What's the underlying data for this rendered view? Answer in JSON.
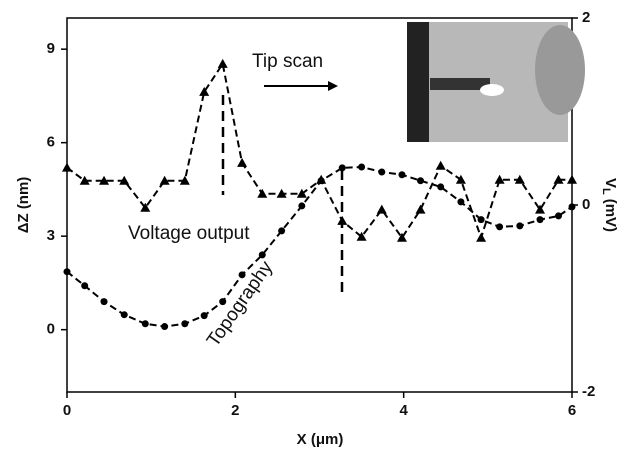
{
  "chart_data": {
    "type": "line",
    "xlabel": "X (μm)",
    "ylabel": "ΔZ (nm)",
    "y2label": {
      "main": "V",
      "sub": "L",
      "unit": "(mV)"
    },
    "annotations": {
      "tip_scan": "Tip scan",
      "voltage": "Voltage output",
      "topography": "Topography"
    },
    "x": [
      0,
      0.21,
      0.44,
      0.68,
      0.93,
      1.16,
      1.4,
      1.63,
      1.85,
      2.08,
      2.32,
      2.55,
      2.79,
      3.02,
      3.27,
      3.5,
      3.74,
      3.98,
      4.2,
      4.44,
      4.68,
      4.92,
      5.14,
      5.38,
      5.62,
      5.84,
      6.0
    ],
    "series": [
      {
        "name": "Voltage output",
        "color": "#000000",
        "axis": "y2",
        "marker": "triangle",
        "values": [
          0.4,
          0.26,
          0.26,
          0.26,
          -0.03,
          0.26,
          0.26,
          1.21,
          1.51,
          0.45,
          0.12,
          0.12,
          0.12,
          0.27,
          -0.17,
          -0.34,
          -0.05,
          -0.35,
          -0.05,
          0.42,
          0.27,
          -0.35,
          0.27,
          0.27,
          -0.05,
          0.27,
          0.27
        ]
      },
      {
        "name": "Topography",
        "color": "#000000",
        "axis": "y",
        "marker": "circle",
        "values": [
          1.86,
          1.41,
          0.9,
          0.48,
          0.19,
          0.1,
          0.19,
          0.45,
          0.9,
          1.76,
          2.4,
          3.17,
          3.97,
          4.78,
          5.19,
          5.22,
          5.06,
          4.97,
          4.78,
          4.58,
          4.1,
          3.53,
          3.3,
          3.33,
          3.53,
          3.65,
          3.94
        ]
      }
    ],
    "xlim": [
      0,
      6
    ],
    "xticks": [
      0,
      2,
      4,
      6
    ],
    "ylim": [
      -2,
      10
    ],
    "yticks": [
      0,
      3,
      6,
      9
    ],
    "y2lim": [
      -2,
      2
    ],
    "y2ticks": [
      -2,
      0,
      2
    ]
  }
}
